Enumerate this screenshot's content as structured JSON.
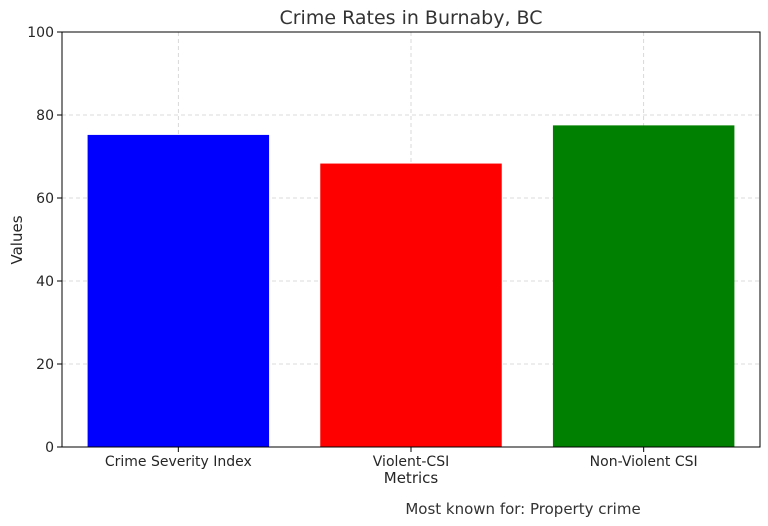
{
  "chart_data": {
    "type": "bar",
    "title": "Crime Rates in Burnaby, BC",
    "xlabel": "Metrics",
    "ylabel": "Values",
    "categories": [
      "Crime Severity Index",
      "Violent-CSI",
      "Non-Violent CSI"
    ],
    "values": [
      75.2,
      68.3,
      77.5
    ],
    "colors": [
      "#0000ff",
      "#ff0000",
      "#008000"
    ],
    "ylim": [
      0,
      100
    ],
    "yticks": [
      0,
      20,
      40,
      60,
      80,
      100
    ],
    "grid": true,
    "annotation": "Most known for: Property crime"
  }
}
